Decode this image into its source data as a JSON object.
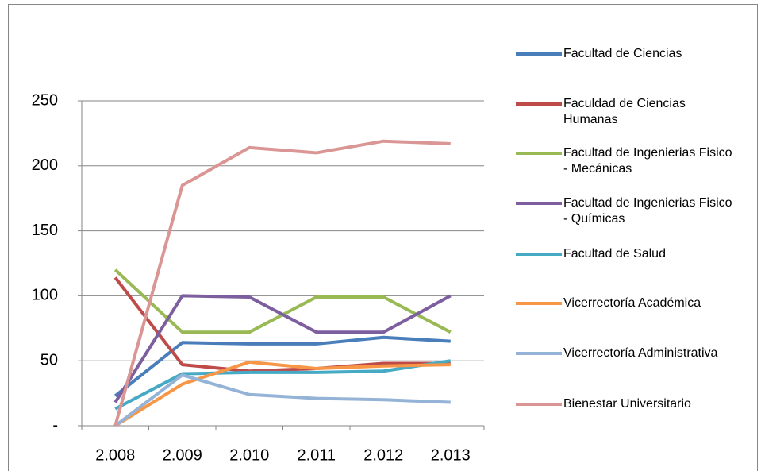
{
  "chart_data": {
    "type": "line",
    "categories": [
      "2.008",
      "2.009",
      "2.010",
      "2.011",
      "2.012",
      "2.013"
    ],
    "ylim": [
      0,
      250
    ],
    "yticks": [
      {
        "value": 0,
        "label": "-"
      },
      50,
      100,
      150,
      200,
      250
    ],
    "grid": true,
    "legend": "right",
    "series": [
      {
        "name": "Facultad de Ciencias",
        "color": "#4a7ebb",
        "values": [
          23,
          64,
          63,
          63,
          68,
          65
        ]
      },
      {
        "name": "Faculdad de Ciencias Humanas",
        "color": "#be4b48",
        "values": [
          114,
          47,
          42,
          44,
          48,
          48
        ]
      },
      {
        "name": "Facultad de Ingenierias Fisico - Mecánicas",
        "color": "#98b954",
        "values": [
          120,
          72,
          72,
          99,
          99,
          72
        ]
      },
      {
        "name": "Facultad de Ingenierias Fisico - Químicas",
        "color": "#7d5fa0",
        "values": [
          18,
          100,
          99,
          72,
          72,
          100
        ]
      },
      {
        "name": "Facultad de Salud",
        "color": "#46aac5",
        "values": [
          13,
          40,
          41,
          41,
          42,
          50
        ]
      },
      {
        "name": "Vicerrectoría Académica",
        "color": "#f79646",
        "values": [
          0,
          32,
          49,
          44,
          46,
          47
        ]
      },
      {
        "name": "Vicerrectoría Administrativa",
        "color": "#95b3d7",
        "values": [
          0,
          39,
          24,
          21,
          20,
          18
        ]
      },
      {
        "name": "Bienestar Universitario",
        "color": "#d99694",
        "values": [
          0,
          185,
          214,
          210,
          219,
          217
        ]
      }
    ]
  }
}
